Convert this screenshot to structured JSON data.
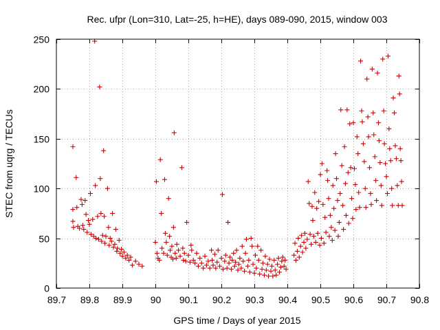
{
  "chart_data": {
    "type": "scatter",
    "title": "Rec. ufpr (Lon=310, Lat=-25, h=HE), days 089-090, 2015, window 003",
    "xlabel": "GPS time / Days of year 2015",
    "ylabel": "STEC from uqrg / TECUs",
    "xlim": [
      89.7,
      90.8
    ],
    "ylim": [
      0,
      250
    ],
    "xticks": [
      89.7,
      89.8,
      89.9,
      90.0,
      90.1,
      90.2,
      90.3,
      90.4,
      90.5,
      90.6,
      90.7,
      90.8
    ],
    "xtick_labels": [
      "89.7",
      "89.8",
      "89.9",
      "90",
      "90.1",
      "90.2",
      "90.3",
      "90.4",
      "90.5",
      "90.6",
      "90.7",
      "90.8"
    ],
    "yticks": [
      0,
      50,
      100,
      150,
      200,
      250
    ],
    "ytick_labels": [
      "0",
      "50",
      "100",
      "150",
      "200",
      "250"
    ],
    "grid": true,
    "marker": "+",
    "series": [
      {
        "name": "STEC",
        "color": "#cc0000",
        "points": [
          [
            89.75,
            142
          ],
          [
            89.75,
            79
          ],
          [
            89.75,
            67
          ],
          [
            89.752,
            61
          ],
          [
            89.76,
            111
          ],
          [
            89.762,
            81
          ],
          [
            89.765,
            62
          ],
          [
            89.77,
            60
          ],
          [
            89.775,
            89
          ],
          [
            89.778,
            84
          ],
          [
            89.78,
            63
          ],
          [
            89.783,
            59
          ],
          [
            89.787,
            88
          ],
          [
            89.79,
            74
          ],
          [
            89.793,
            56
          ],
          [
            89.797,
            68
          ],
          [
            89.8,
            64
          ],
          [
            89.803,
            95
          ],
          [
            89.805,
            54
          ],
          [
            89.81,
            69
          ],
          [
            89.813,
            52
          ],
          [
            89.816,
            248
          ],
          [
            89.818,
            103
          ],
          [
            89.82,
            50
          ],
          [
            89.825,
            72
          ],
          [
            89.828,
            49
          ],
          [
            89.831,
            202
          ],
          [
            89.833,
            110
          ],
          [
            89.835,
            75
          ],
          [
            89.837,
            47
          ],
          [
            89.84,
            53
          ],
          [
            89.843,
            138
          ],
          [
            89.845,
            72
          ],
          [
            89.847,
            45
          ],
          [
            89.85,
            52
          ],
          [
            89.855,
            100
          ],
          [
            89.858,
            61
          ],
          [
            89.86,
            43
          ],
          [
            89.863,
            50
          ],
          [
            89.867,
            47
          ],
          [
            89.87,
            75
          ],
          [
            89.873,
            41
          ],
          [
            89.877,
            44
          ],
          [
            89.88,
            59
          ],
          [
            89.883,
            37
          ],
          [
            89.885,
            40
          ],
          [
            89.89,
            48
          ],
          [
            89.893,
            35
          ],
          [
            89.897,
            39
          ],
          [
            89.9,
            32
          ],
          [
            89.905,
            36
          ],
          [
            89.91,
            30
          ],
          [
            89.915,
            33
          ],
          [
            89.92,
            28
          ],
          [
            89.925,
            31
          ],
          [
            89.93,
            23
          ],
          [
            89.94,
            27
          ],
          [
            89.95,
            24
          ],
          [
            89.96,
            22
          ],
          [
            90.0,
            46
          ],
          [
            90.003,
            107
          ],
          [
            90.005,
            35
          ],
          [
            90.008,
            30
          ],
          [
            90.012,
            28
          ],
          [
            90.015,
            129
          ],
          [
            90.018,
            75
          ],
          [
            90.02,
            40
          ],
          [
            90.025,
            35
          ],
          [
            90.028,
            109
          ],
          [
            90.03,
            55
          ],
          [
            90.033,
            46
          ],
          [
            90.036,
            33
          ],
          [
            90.04,
            90
          ],
          [
            90.043,
            52
          ],
          [
            90.045,
            38
          ],
          [
            90.048,
            31
          ],
          [
            90.05,
            42
          ],
          [
            90.053,
            29
          ],
          [
            90.055,
            61
          ],
          [
            90.057,
            156
          ],
          [
            90.06,
            35
          ],
          [
            90.063,
            30
          ],
          [
            90.065,
            44
          ],
          [
            90.07,
            38
          ],
          [
            90.075,
            32
          ],
          [
            90.08,
            121
          ],
          [
            90.083,
            40
          ],
          [
            90.085,
            28
          ],
          [
            90.088,
            35
          ],
          [
            90.092,
            27
          ],
          [
            90.095,
            66
          ],
          [
            90.1,
            33
          ],
          [
            90.105,
            26
          ],
          [
            90.108,
            43
          ],
          [
            90.11,
            38
          ],
          [
            90.115,
            28
          ],
          [
            90.12,
            25
          ],
          [
            90.125,
            35
          ],
          [
            90.13,
            22
          ],
          [
            90.135,
            30
          ],
          [
            90.14,
            25
          ],
          [
            90.145,
            20
          ],
          [
            90.15,
            32
          ],
          [
            90.155,
            23
          ],
          [
            90.16,
            27
          ],
          [
            90.165,
            20
          ],
          [
            90.17,
            38
          ],
          [
            90.172,
            28
          ],
          [
            90.175,
            23
          ],
          [
            90.18,
            34
          ],
          [
            90.183,
            20
          ],
          [
            90.187,
            26
          ],
          [
            90.19,
            38
          ],
          [
            90.195,
            22
          ],
          [
            90.2,
            30
          ],
          [
            90.203,
            94
          ],
          [
            90.205,
            19
          ],
          [
            90.21,
            27
          ],
          [
            90.213,
            33
          ],
          [
            90.217,
            20
          ],
          [
            90.22,
            66
          ],
          [
            90.223,
            25
          ],
          [
            90.226,
            31
          ],
          [
            90.23,
            19
          ],
          [
            90.233,
            28
          ],
          [
            90.237,
            35
          ],
          [
            90.24,
            22
          ],
          [
            90.243,
            26
          ],
          [
            90.246,
            38
          ],
          [
            90.25,
            18
          ],
          [
            90.253,
            24
          ],
          [
            90.256,
            30
          ],
          [
            90.26,
            20
          ],
          [
            90.263,
            42
          ],
          [
            90.266,
            27
          ],
          [
            90.27,
            17
          ],
          [
            90.273,
            35
          ],
          [
            90.276,
            49
          ],
          [
            90.28,
            22
          ],
          [
            90.283,
            28
          ],
          [
            90.286,
            16
          ],
          [
            90.29,
            50
          ],
          [
            90.293,
            42
          ],
          [
            90.296,
            24
          ],
          [
            90.3,
            15
          ],
          [
            90.303,
            33
          ],
          [
            90.306,
            20
          ],
          [
            90.31,
            42
          ],
          [
            90.313,
            28
          ],
          [
            90.316,
            14
          ],
          [
            90.32,
            38
          ],
          [
            90.323,
            19
          ],
          [
            90.326,
            25
          ],
          [
            90.33,
            13
          ],
          [
            90.333,
            32
          ],
          [
            90.336,
            18
          ],
          [
            90.34,
            24
          ],
          [
            90.343,
            12
          ],
          [
            90.346,
            29
          ],
          [
            90.35,
            17
          ],
          [
            90.353,
            22
          ],
          [
            90.356,
            12
          ],
          [
            90.36,
            28
          ],
          [
            90.363,
            18
          ],
          [
            90.366,
            13
          ],
          [
            90.37,
            24
          ],
          [
            90.373,
            30
          ],
          [
            90.376,
            16
          ],
          [
            90.38,
            21
          ],
          [
            90.383,
            27
          ],
          [
            90.386,
            31
          ],
          [
            90.39,
            22
          ],
          [
            90.393,
            28
          ],
          [
            90.396,
            19
          ],
          [
            90.42,
            33
          ],
          [
            90.423,
            45
          ],
          [
            90.426,
            28
          ],
          [
            90.43,
            37
          ],
          [
            90.433,
            50
          ],
          [
            90.436,
            31
          ],
          [
            90.44,
            42
          ],
          [
            90.443,
            53
          ],
          [
            90.446,
            36
          ],
          [
            90.45,
            46
          ],
          [
            90.453,
            55
          ],
          [
            90.456,
            40
          ],
          [
            90.46,
            49
          ],
          [
            90.463,
            107
          ],
          [
            90.466,
            85
          ],
          [
            90.469,
            54
          ],
          [
            90.472,
            44
          ],
          [
            90.475,
            82
          ],
          [
            90.477,
            68
          ],
          [
            90.48,
            52
          ],
          [
            90.483,
            96
          ],
          [
            90.486,
            46
          ],
          [
            90.489,
            80
          ],
          [
            90.492,
            55
          ],
          [
            90.495,
            87
          ],
          [
            90.498,
            43
          ],
          [
            90.5,
            114
          ],
          [
            90.503,
            50
          ],
          [
            90.505,
            125
          ],
          [
            90.508,
            84
          ],
          [
            90.511,
            45
          ],
          [
            90.514,
            71
          ],
          [
            90.517,
            56
          ],
          [
            90.52,
            118
          ],
          [
            90.522,
            108
          ],
          [
            90.525,
            90
          ],
          [
            90.527,
            52
          ],
          [
            90.53,
            73
          ],
          [
            90.533,
            61
          ],
          [
            90.536,
            48
          ],
          [
            90.538,
            103
          ],
          [
            90.541,
            80
          ],
          [
            90.544,
            58
          ],
          [
            90.546,
            135
          ],
          [
            90.549,
            110
          ],
          [
            90.552,
            88
          ],
          [
            90.554,
            52
          ],
          [
            90.557,
            66
          ],
          [
            90.56,
            95
          ],
          [
            90.562,
            179
          ],
          [
            90.565,
            123
          ],
          [
            90.568,
            83
          ],
          [
            90.57,
            59
          ],
          [
            90.573,
            142
          ],
          [
            90.576,
            105
          ],
          [
            90.578,
            73
          ],
          [
            90.581,
            179
          ],
          [
            90.584,
            116
          ],
          [
            90.586,
            65
          ],
          [
            90.589,
            165
          ],
          [
            90.592,
            121
          ],
          [
            90.595,
            90
          ],
          [
            90.598,
            70
          ],
          [
            90.6,
            166
          ],
          [
            90.603,
            120
          ],
          [
            90.606,
            104
          ],
          [
            90.608,
            79
          ],
          [
            90.611,
            152
          ],
          [
            90.614,
            135
          ],
          [
            90.616,
            96
          ],
          [
            90.619,
            81
          ],
          [
            90.622,
            228
          ],
          [
            90.625,
            178
          ],
          [
            90.627,
            167
          ],
          [
            90.63,
            145
          ],
          [
            90.633,
            127
          ],
          [
            90.636,
            100
          ],
          [
            90.638,
            81
          ],
          [
            90.641,
            210
          ],
          [
            90.644,
            172
          ],
          [
            90.646,
            152
          ],
          [
            90.649,
            121
          ],
          [
            90.652,
            95
          ],
          [
            90.654,
            84
          ],
          [
            90.657,
            220
          ],
          [
            90.66,
            176
          ],
          [
            90.662,
            154
          ],
          [
            90.665,
            132
          ],
          [
            90.668,
            108
          ],
          [
            90.67,
            88
          ],
          [
            90.673,
            216
          ],
          [
            90.676,
            166
          ],
          [
            90.678,
            148
          ],
          [
            90.681,
            126
          ],
          [
            90.684,
            103
          ],
          [
            90.686,
            83
          ],
          [
            90.689,
            230
          ],
          [
            90.692,
            178
          ],
          [
            90.694,
            145
          ],
          [
            90.697,
            125
          ],
          [
            90.7,
            112
          ],
          [
            90.703,
            95
          ],
          [
            90.705,
            233
          ],
          [
            90.708,
            160
          ],
          [
            90.71,
            140
          ],
          [
            90.713,
            128
          ],
          [
            90.716,
            100
          ],
          [
            90.718,
            83
          ],
          [
            90.721,
            191
          ],
          [
            90.724,
            176
          ],
          [
            90.727,
            143
          ],
          [
            90.73,
            130
          ],
          [
            90.733,
            103
          ],
          [
            90.736,
            83
          ],
          [
            90.738,
            213
          ],
          [
            90.74,
            195
          ],
          [
            90.742,
            140
          ],
          [
            90.744,
            128
          ],
          [
            90.746,
            107
          ],
          [
            90.748,
            83
          ]
        ]
      }
    ]
  }
}
